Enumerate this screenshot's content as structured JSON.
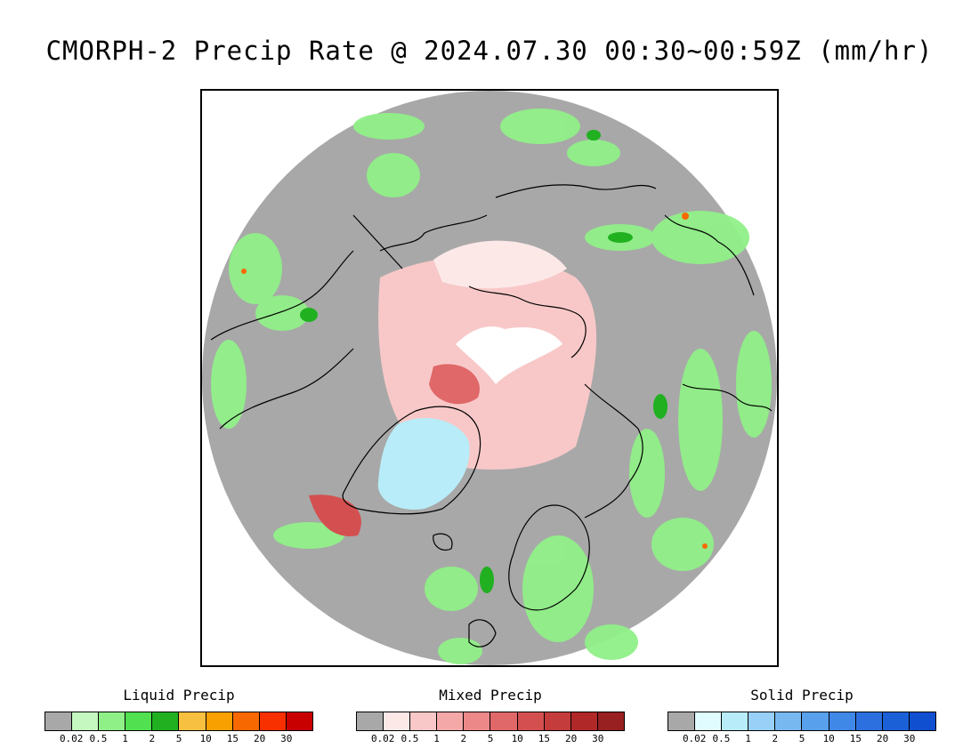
{
  "title": "CMORPH-2 Precip Rate @ 2024.07.30 00:30~00:59Z (mm/hr)",
  "map": {
    "projection": "north polar stereographic",
    "background_color": "#a8a8a8",
    "coastline_color": "#000000"
  },
  "legend": {
    "tick_labels": [
      "0.02",
      "0.5",
      "1",
      "2",
      "5",
      "10",
      "15",
      "20",
      "30"
    ],
    "liquid": {
      "title": "Liquid Precip",
      "colors": [
        "#a8a8a8",
        "#c4f8c0",
        "#90f088",
        "#50e050",
        "#20b020",
        "#f8c040",
        "#f8a000",
        "#f86800",
        "#f83000",
        "#c80000"
      ]
    },
    "mixed": {
      "title": "Mixed Precip",
      "colors": [
        "#a8a8a8",
        "#fde8e8",
        "#f8c8c8",
        "#f4a8a8",
        "#ec8888",
        "#e06868",
        "#d45050",
        "#c43c3c",
        "#b02828",
        "#982020"
      ]
    },
    "solid": {
      "title": "Solid Precip",
      "colors": [
        "#a8a8a8",
        "#e0fcff",
        "#b8ecf8",
        "#98d0f8",
        "#78b8f0",
        "#58a0ec",
        "#4088e8",
        "#2c70e0",
        "#1c60d8",
        "#1050d0"
      ]
    }
  }
}
